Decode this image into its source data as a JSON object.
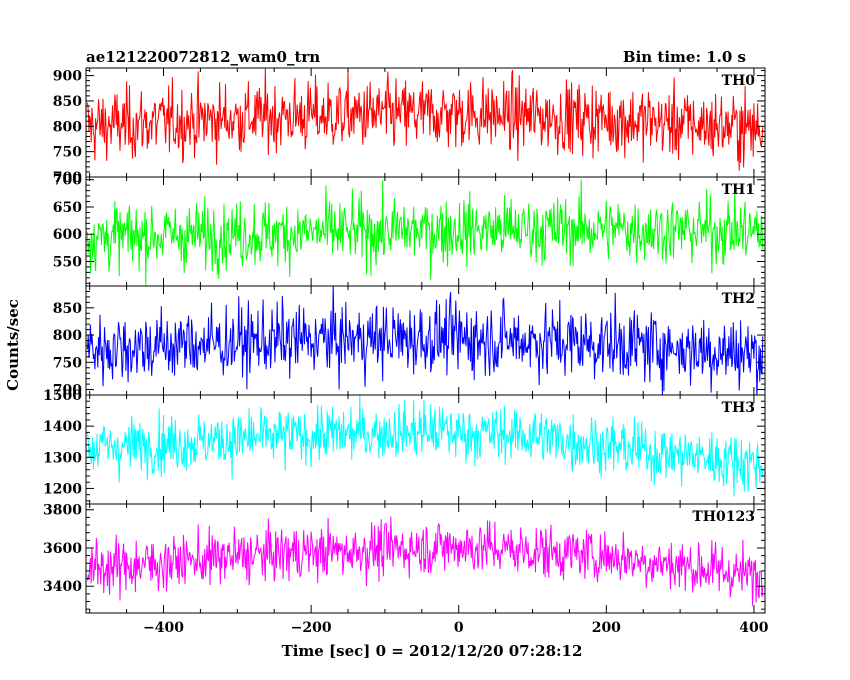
{
  "chart_data": {
    "type": "line",
    "title": "ae121220072812_wam0_trn",
    "bin_time": "Bin time: 1.0 s",
    "xlabel": "Time [sec] 0 = 2012/12/20 07:28:12",
    "ylabel": "Counts/sec",
    "xlim": [
      -505,
      415
    ],
    "x_ticks": [
      -400,
      -200,
      0,
      200,
      400
    ],
    "x_tick_labels": [
      "−400",
      "−200",
      "0",
      "200",
      "400"
    ],
    "x_data_range": [
      -503,
      412
    ],
    "panels": [
      {
        "name": "TH0",
        "color": "#ff0000",
        "ylim": [
          700,
          915
        ],
        "y_ticks": [
          700,
          750,
          800,
          850,
          900
        ],
        "y_tick_labels": [
          "700",
          "750",
          "800",
          "850",
          "900"
        ],
        "trend": [
          {
            "x": -503,
            "y": 800
          },
          {
            "x": -250,
            "y": 820
          },
          {
            "x": 0,
            "y": 825
          },
          {
            "x": 200,
            "y": 815
          },
          {
            "x": 412,
            "y": 795
          }
        ],
        "noise_sd": 35
      },
      {
        "name": "TH1",
        "color": "#00ff00",
        "ylim": [
          505,
          705
        ],
        "y_ticks": [
          550,
          600,
          650,
          700
        ],
        "y_tick_labels": [
          "550",
          "600",
          "650",
          "700"
        ],
        "trend": [
          {
            "x": -503,
            "y": 595
          },
          {
            "x": -200,
            "y": 603
          },
          {
            "x": 0,
            "y": 608
          },
          {
            "x": 200,
            "y": 610
          },
          {
            "x": 412,
            "y": 605
          }
        ],
        "noise_sd": 30
      },
      {
        "name": "TH2",
        "color": "#0000ff",
        "ylim": [
          690,
          890
        ],
        "y_ticks": [
          700,
          750,
          800,
          850
        ],
        "y_tick_labels": [
          "700",
          "750",
          "800",
          "850"
        ],
        "trend": [
          {
            "x": -503,
            "y": 775
          },
          {
            "x": -250,
            "y": 790
          },
          {
            "x": 0,
            "y": 795
          },
          {
            "x": 200,
            "y": 785
          },
          {
            "x": 412,
            "y": 765
          }
        ],
        "noise_sd": 33
      },
      {
        "name": "TH3",
        "color": "#00ffff",
        "ylim": [
          1150,
          1500
        ],
        "y_ticks": [
          1200,
          1300,
          1400,
          1500
        ],
        "y_tick_labels": [
          "1200",
          "1300",
          "1400",
          "1500"
        ],
        "trend": [
          {
            "x": -503,
            "y": 1330
          },
          {
            "x": -250,
            "y": 1365
          },
          {
            "x": -50,
            "y": 1385
          },
          {
            "x": 100,
            "y": 1370
          },
          {
            "x": 250,
            "y": 1320
          },
          {
            "x": 412,
            "y": 1280
          }
        ],
        "noise_sd": 45
      },
      {
        "name": "TH0123",
        "color": "#ff00ff",
        "ylim": [
          3260,
          3830
        ],
        "y_ticks": [
          3400,
          3600,
          3800
        ],
        "y_tick_labels": [
          "3400",
          "3600",
          "3800"
        ],
        "trend": [
          {
            "x": -503,
            "y": 3490
          },
          {
            "x": -250,
            "y": 3570
          },
          {
            "x": 0,
            "y": 3610
          },
          {
            "x": 200,
            "y": 3560
          },
          {
            "x": 412,
            "y": 3450
          }
        ],
        "noise_sd": 70
      }
    ]
  }
}
